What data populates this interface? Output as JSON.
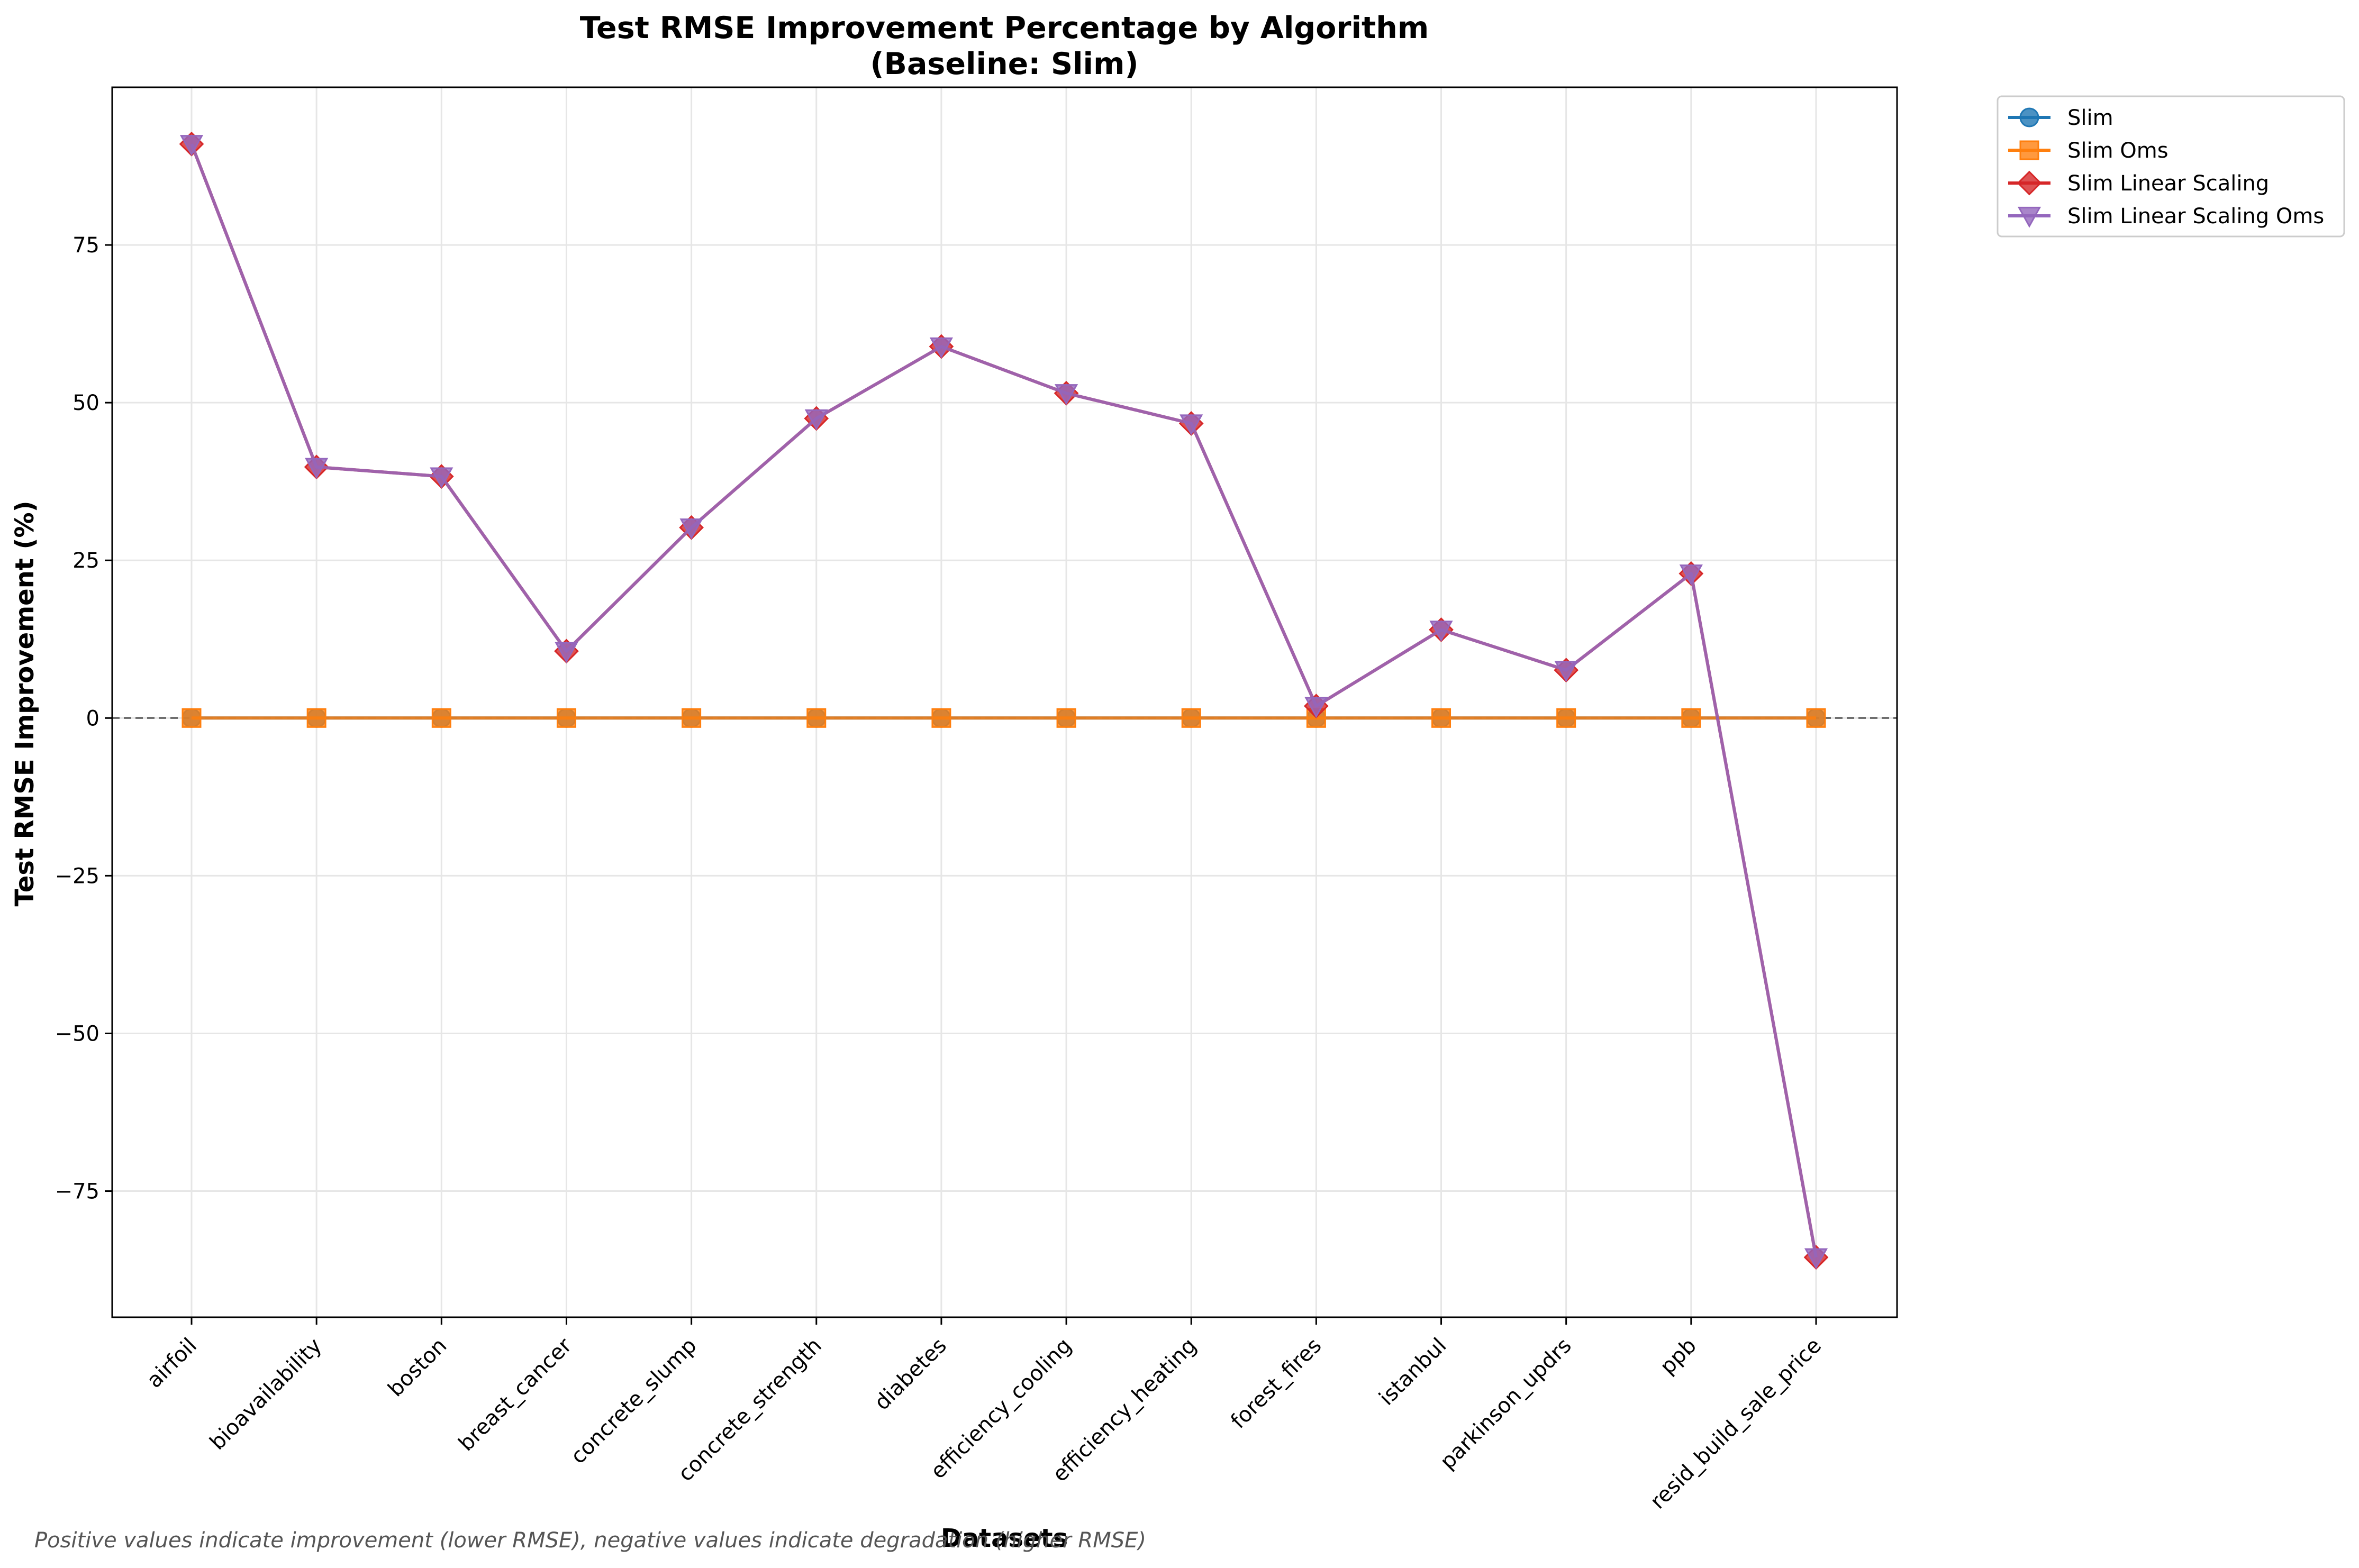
{
  "chart_data": {
    "type": "line",
    "title": "Test RMSE Improvement Percentage by Algorithm",
    "subtitle": "(Baseline: Slim)",
    "xlabel": "Datasets",
    "ylabel": "Test RMSE Improvement (%)",
    "categories": [
      "airfoil",
      "bioavailability",
      "boston",
      "breast_cancer",
      "concrete_slump",
      "concrete_strength",
      "diabetes",
      "efficiency_cooling",
      "efficiency_heating",
      "forest_fires",
      "istanbul",
      "parkinson_updrs",
      "ppb",
      "resid_build_sale_price"
    ],
    "ylim": [
      -95,
      100
    ],
    "yticks": [
      -75,
      -50,
      -25,
      0,
      25,
      50,
      75
    ],
    "ytick_labels": [
      "−75",
      "−50",
      "−25",
      "0",
      "25",
      "50",
      "75"
    ],
    "grid": true,
    "reference_line": 0,
    "legend_position": "outside-top-right",
    "series": [
      {
        "name": "Slim",
        "marker": "circle",
        "color": "#1f77b4",
        "values": [
          0,
          0,
          0,
          0,
          0,
          0,
          0,
          0,
          0,
          0,
          0,
          0,
          0,
          0
        ]
      },
      {
        "name": "Slim Oms",
        "marker": "square",
        "color": "#ff7f0e",
        "values": [
          0,
          0,
          0,
          0,
          0,
          0,
          0,
          0,
          0,
          0,
          0,
          0,
          0,
          0
        ]
      },
      {
        "name": "Slim Linear Scaling",
        "marker": "diamond",
        "color": "#d62728",
        "values": [
          91.0,
          39.8,
          38.3,
          10.6,
          30.2,
          47.5,
          58.9,
          51.5,
          46.7,
          1.9,
          14.0,
          7.6,
          22.9,
          -85.5
        ]
      },
      {
        "name": "Slim Linear Scaling Oms",
        "marker": "triangle-down",
        "color": "#9467bd",
        "values": [
          91.0,
          39.8,
          38.3,
          10.6,
          30.2,
          47.5,
          58.9,
          51.5,
          46.7,
          1.9,
          14.0,
          7.6,
          22.9,
          -85.5
        ]
      }
    ],
    "footnote": "Positive values indicate improvement (lower RMSE), negative values indicate degradation (higher RMSE)"
  }
}
